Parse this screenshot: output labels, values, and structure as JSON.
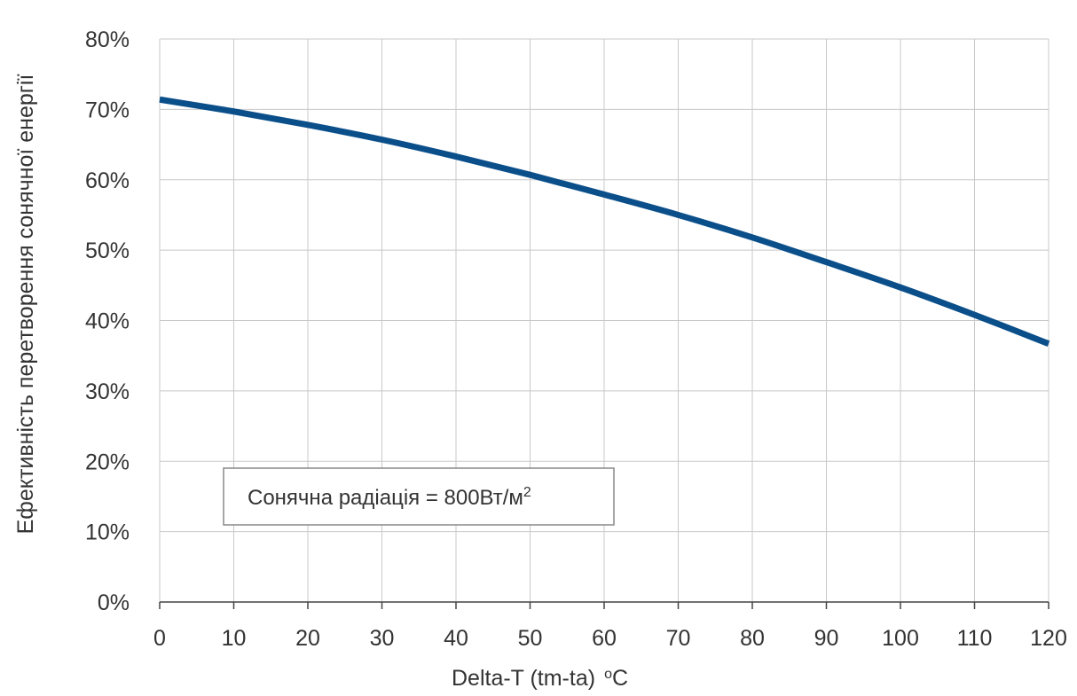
{
  "chart_data": {
    "type": "line",
    "title": "",
    "xlabel": "Delta-T (tm-ta)",
    "xlabel_unit_sup": "o",
    "xlabel_unit": "C",
    "ylabel": "Ефективність перетворення сонячної енергії",
    "xlim": [
      0,
      120
    ],
    "ylim": [
      0,
      80
    ],
    "x_ticks": [
      "0",
      "10",
      "20",
      "30",
      "40",
      "50",
      "60",
      "70",
      "80",
      "90",
      "100",
      "110",
      "120"
    ],
    "y_ticks": [
      "0%",
      "10%",
      "20%",
      "30%",
      "40%",
      "50%",
      "60%",
      "70%",
      "80%"
    ],
    "grid": true,
    "line_color": "#0b4f8a",
    "series": [
      {
        "x": [
          0,
          10,
          20,
          30,
          40,
          50,
          60,
          70,
          80,
          90,
          100,
          110,
          120
        ],
        "y": [
          71.4,
          69.7,
          67.8,
          65.7,
          63.3,
          60.7,
          57.9,
          55.0,
          51.8,
          48.3,
          44.7,
          40.8,
          36.7
        ]
      }
    ],
    "annotation": {
      "text": "Сонячна радіація = 800Вт/м",
      "sup": "2"
    }
  }
}
